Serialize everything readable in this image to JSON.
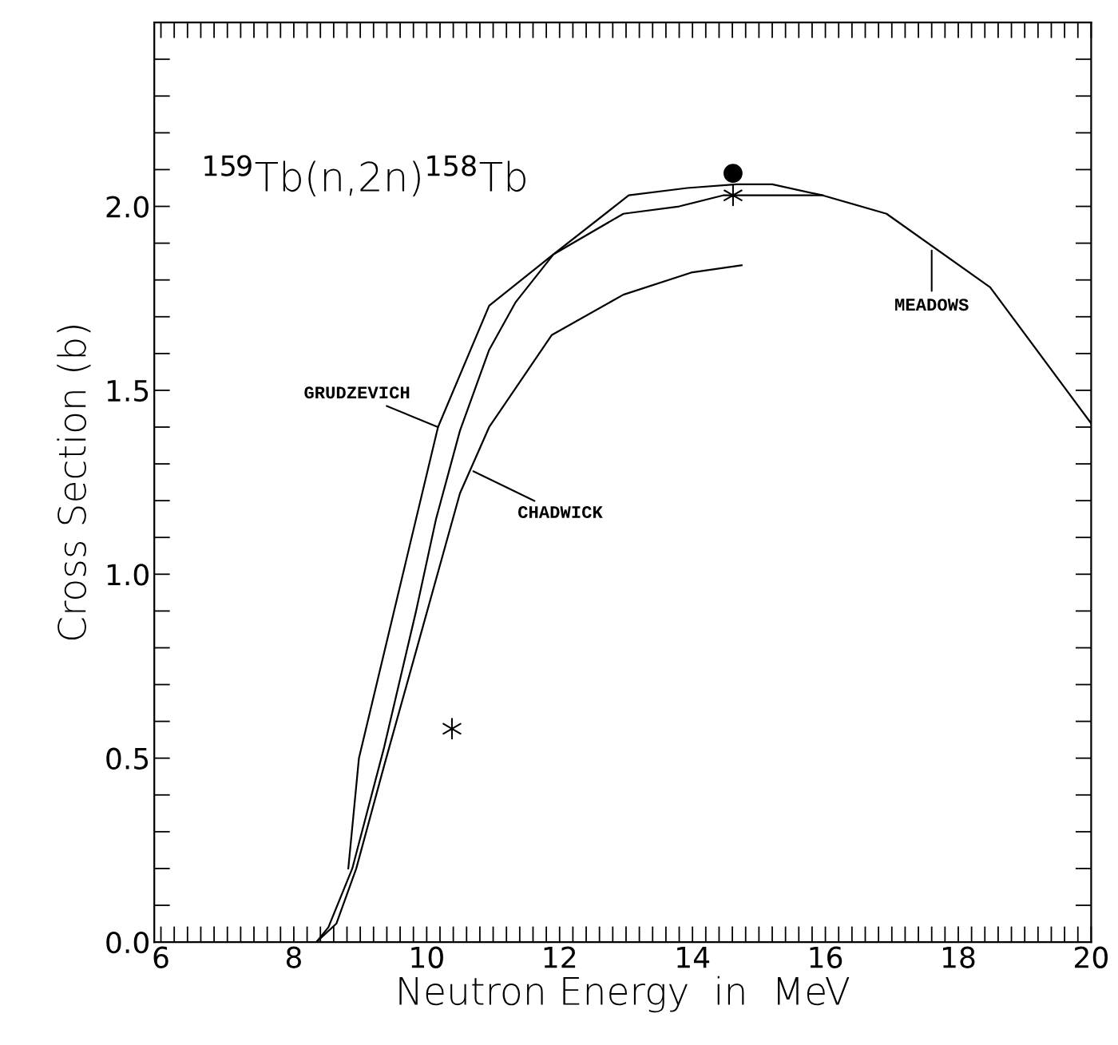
{
  "chart_data": {
    "type": "line",
    "title": "$^{159}$Tb(n,2n)$^{158}$Tb",
    "xlabel": "Neutron Energy  in  MeV",
    "ylabel": "Cross Section (b)",
    "xlim": [
      5.9,
      20
    ],
    "ylim": [
      0,
      2.5
    ],
    "xticks": [
      6,
      8,
      10,
      12,
      14,
      16,
      18,
      20
    ],
    "yticks": [
      {
        "value": 0,
        "label": "0.0"
      },
      0.5,
      {
        "value": 1,
        "label": "1.0"
      },
      1.5,
      {
        "value": 2,
        "label": "2.0"
      }
    ],
    "grid": false,
    "legend": false,
    "line_style": "solid",
    "series": [
      {
        "color": "#000000",
        "x": [
          8.82,
          8.98,
          10.17,
          10.94,
          11.91,
          13.04,
          13.92,
          14.66,
          15.2,
          15.96
        ],
        "values": [
          0.2,
          0.5,
          1.4,
          1.73,
          1.87,
          2.03,
          2.05,
          2.06,
          2.06,
          2.03
        ]
      },
      {
        "color": "#000000",
        "x": [
          8.34,
          8.52,
          8.88,
          9.36,
          9.84,
          10.14,
          10.5,
          10.94,
          11.34,
          11.91,
          12.96,
          13.8,
          14.46,
          15.96,
          16.92,
          18.48,
          20
        ],
        "values": [
          0,
          0.04,
          0.2,
          0.53,
          0.9,
          1.15,
          1.39,
          1.61,
          1.74,
          1.87,
          1.98,
          2.0,
          2.03,
          2.03,
          1.98,
          1.78,
          1.41
        ]
      },
      {
        "color": "#000000",
        "x": [
          8.34,
          8.64,
          8.94,
          9.36,
          9.9,
          10.5,
          10.94,
          11.88,
          12.96,
          13.98,
          14.74
        ],
        "values": [
          0,
          0.05,
          0.2,
          0.48,
          0.83,
          1.22,
          1.4,
          1.65,
          1.76,
          1.82,
          1.84
        ]
      },
      {
        "type": "scatter",
        "marker": "cross",
        "color": "#000000",
        "x": [
          10.38,
          14.61
        ],
        "values": [
          0.58,
          2.03
        ]
      },
      {
        "type": "scatter",
        "marker": "circle",
        "color": "#000000",
        "x": [
          14.61
        ],
        "values": [
          2.09
        ]
      }
    ],
    "annotations": [
      {
        "text": "GRUDZEVICH",
        "x": 10.17,
        "y": 1.4
      },
      {
        "text": "CHADWICK",
        "x": 10.7,
        "y": 1.28
      },
      {
        "text": "MEADOWS",
        "x": 17.6,
        "y": 1.88
      }
    ]
  }
}
